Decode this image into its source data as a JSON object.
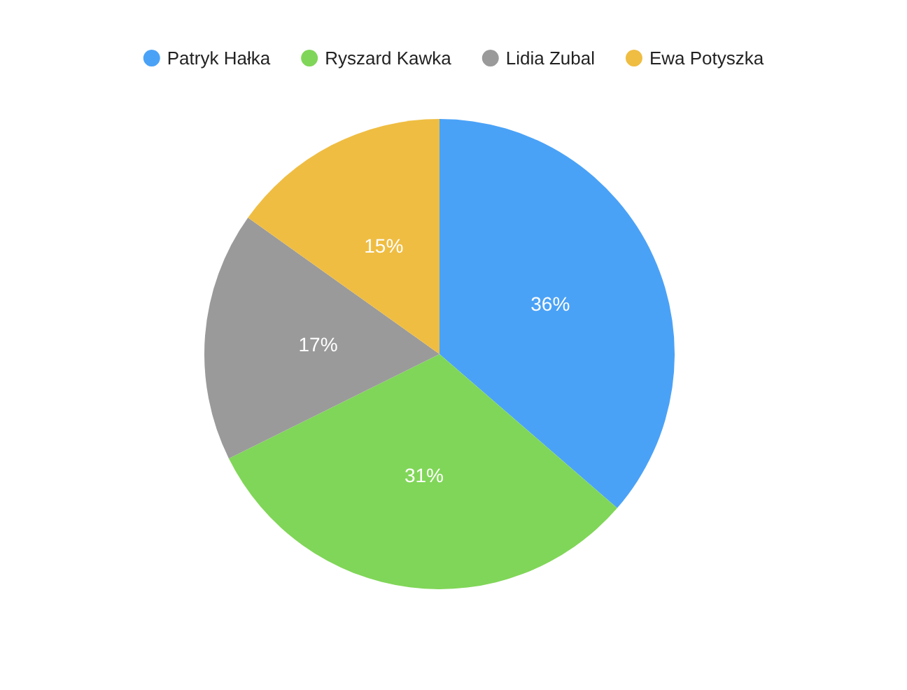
{
  "chart_data": {
    "type": "pie",
    "categories": [
      "Patryk Hałka",
      "Ryszard Kawka",
      "Lidia Zubal",
      "Ewa Potyszka"
    ],
    "values": [
      36,
      31,
      17,
      15
    ],
    "value_labels": [
      "36%",
      "31%",
      "17%",
      "15%"
    ],
    "colors": [
      "#4aa2f7",
      "#80d658",
      "#9a9a9a",
      "#efbd42"
    ],
    "legend": "top"
  }
}
